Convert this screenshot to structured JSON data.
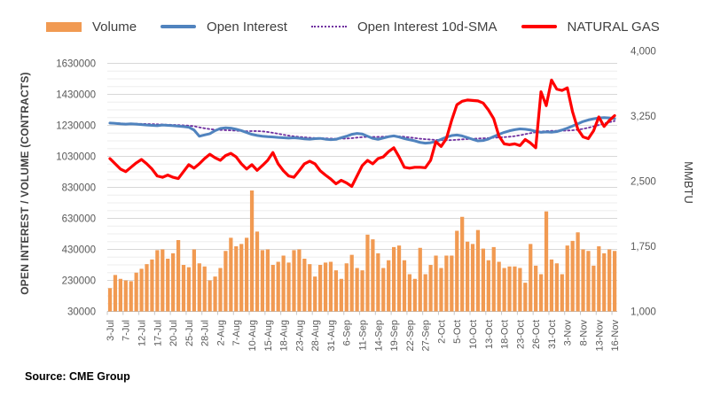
{
  "source_note": "Source: CME Group",
  "legend": {
    "items": [
      {
        "label": "Volume",
        "type": "bar",
        "color": "#F19A52"
      },
      {
        "label": "Open Interest",
        "type": "line",
        "color": "#5083BE"
      },
      {
        "label": "Open Interest 10d-SMA",
        "type": "dotted",
        "color": "#7030A0"
      },
      {
        "label": "NATURAL GAS",
        "type": "line",
        "color": "#FF0000"
      }
    ]
  },
  "chart_data": {
    "type": "bar",
    "subtype": "combo-bar-and-lines",
    "title": "",
    "grid": {
      "minor_step": 50000,
      "major_step": 200000,
      "vertical_gridlines": false
    },
    "left_axis": {
      "title": "OPEN INTEREST / VOLUME (CONTRACTS)",
      "min": 30000,
      "max": 1630000,
      "tick_step": 200000,
      "ticks": [
        1630000,
        1430000,
        1230000,
        1030000,
        830000,
        630000,
        430000,
        230000,
        30000
      ]
    },
    "right_axis": {
      "title": "MMBTU",
      "min": 1000,
      "max": 4000,
      "tick_step": 750,
      "ticks": [
        "4,000",
        "3,250",
        "2,500",
        "1,750",
        "1,000"
      ]
    },
    "x_axis": {
      "label_every_n": 3,
      "labels_shown": [
        "3-Jul",
        "7-Jul",
        "12-Jul",
        "17-Jul",
        "20-Jul",
        "25-Jul",
        "28-Jul",
        "2-Aug",
        "7-Aug",
        "10-Aug",
        "15-Aug",
        "18-Aug",
        "23-Aug",
        "28-Aug",
        "31-Aug",
        "6-Sep",
        "11-Sep",
        "14-Sep",
        "19-Sep",
        "22-Sep",
        "27-Sep",
        "2-Oct",
        "5-Oct",
        "10-Oct",
        "13-Oct",
        "18-Oct",
        "23-Oct",
        "26-Oct",
        "31-Oct",
        "3-Nov",
        "8-Nov",
        "13-Nov",
        "16-Nov"
      ]
    },
    "categories": [
      "3-Jul",
      "5-Jul",
      "6-Jul",
      "7-Jul",
      "10-Jul",
      "11-Jul",
      "12-Jul",
      "13-Jul",
      "14-Jul",
      "17-Jul",
      "18-Jul",
      "19-Jul",
      "20-Jul",
      "21-Jul",
      "24-Jul",
      "25-Jul",
      "26-Jul",
      "27-Jul",
      "28-Jul",
      "31-Jul",
      "1-Aug",
      "2-Aug",
      "3-Aug",
      "4-Aug",
      "7-Aug",
      "8-Aug",
      "9-Aug",
      "10-Aug",
      "11-Aug",
      "14-Aug",
      "15-Aug",
      "16-Aug",
      "17-Aug",
      "18-Aug",
      "21-Aug",
      "22-Aug",
      "23-Aug",
      "24-Aug",
      "25-Aug",
      "28-Aug",
      "29-Aug",
      "30-Aug",
      "31-Aug",
      "1-Sep",
      "5-Sep",
      "6-Sep",
      "7-Sep",
      "8-Sep",
      "11-Sep",
      "12-Sep",
      "13-Sep",
      "14-Sep",
      "15-Sep",
      "18-Sep",
      "19-Sep",
      "20-Sep",
      "21-Sep",
      "22-Sep",
      "25-Sep",
      "26-Sep",
      "27-Sep",
      "28-Sep",
      "29-Sep",
      "2-Oct",
      "3-Oct",
      "4-Oct",
      "5-Oct",
      "6-Oct",
      "9-Oct",
      "10-Oct",
      "11-Oct",
      "12-Oct",
      "13-Oct",
      "16-Oct",
      "17-Oct",
      "18-Oct",
      "19-Oct",
      "20-Oct",
      "23-Oct",
      "24-Oct",
      "25-Oct",
      "26-Oct",
      "27-Oct",
      "30-Oct",
      "31-Oct",
      "1-Nov",
      "2-Nov",
      "3-Nov",
      "6-Nov",
      "7-Nov",
      "8-Nov",
      "9-Nov",
      "10-Nov",
      "13-Nov",
      "14-Nov",
      "15-Nov",
      "16-Nov"
    ],
    "series": [
      {
        "name": "Volume",
        "type": "bar",
        "axis": "left",
        "color": "#F19A52",
        "values": [
          180000,
          265000,
          240000,
          230000,
          225000,
          280000,
          305000,
          335000,
          365000,
          425000,
          430000,
          370000,
          405000,
          490000,
          330000,
          315000,
          430000,
          340000,
          320000,
          230000,
          255000,
          310000,
          420000,
          505000,
          450000,
          465000,
          505000,
          810000,
          545000,
          425000,
          430000,
          330000,
          350000,
          390000,
          345000,
          425000,
          430000,
          370000,
          335000,
          255000,
          330000,
          345000,
          350000,
          295000,
          240000,
          340000,
          395000,
          310000,
          295000,
          525000,
          495000,
          405000,
          310000,
          360000,
          445000,
          455000,
          360000,
          270000,
          240000,
          440000,
          270000,
          330000,
          390000,
          310000,
          390000,
          390000,
          550000,
          640000,
          480000,
          465000,
          555000,
          435000,
          360000,
          445000,
          350000,
          310000,
          320000,
          320000,
          310000,
          215000,
          465000,
          325000,
          270000,
          675000,
          365000,
          340000,
          270000,
          455000,
          485000,
          540000,
          430000,
          420000,
          325000,
          450000,
          405000,
          430000,
          420000
        ]
      },
      {
        "name": "Open Interest",
        "type": "line",
        "axis": "left",
        "color": "#5083BE",
        "values": [
          1245000,
          1243000,
          1240000,
          1238000,
          1240000,
          1238000,
          1235000,
          1232000,
          1230000,
          1228000,
          1232000,
          1230000,
          1228000,
          1225000,
          1222000,
          1218000,
          1200000,
          1160000,
          1168000,
          1176000,
          1196000,
          1210000,
          1214000,
          1212000,
          1205000,
          1196000,
          1184000,
          1172000,
          1165000,
          1160000,
          1157000,
          1155000,
          1152000,
          1150000,
          1148000,
          1150000,
          1147000,
          1143000,
          1141000,
          1144000,
          1146000,
          1141000,
          1138000,
          1140000,
          1150000,
          1160000,
          1172000,
          1178000,
          1174000,
          1160000,
          1146000,
          1140000,
          1148000,
          1157000,
          1162000,
          1155000,
          1145000,
          1137000,
          1130000,
          1120000,
          1115000,
          1118000,
          1126000,
          1140000,
          1154000,
          1164000,
          1168000,
          1162000,
          1151000,
          1140000,
          1130000,
          1132000,
          1142000,
          1158000,
          1172000,
          1185000,
          1195000,
          1202000,
          1207000,
          1205000,
          1200000,
          1192000,
          1185000,
          1188000,
          1186000,
          1190000,
          1200000,
          1212000,
          1226000,
          1240000,
          1255000,
          1265000,
          1272000,
          1278000,
          1280000,
          1278000,
          1273000
        ]
      },
      {
        "name": "Open Interest 10d-SMA",
        "type": "line-dotted",
        "axis": "left",
        "color": "#7030A0",
        "derived_from": "Open Interest",
        "window": 10
      },
      {
        "name": "NATURAL GAS",
        "type": "line",
        "axis": "right",
        "color": "#FF0000",
        "values": [
          2760,
          2700,
          2640,
          2610,
          2660,
          2710,
          2750,
          2700,
          2640,
          2560,
          2545,
          2570,
          2545,
          2530,
          2610,
          2690,
          2650,
          2700,
          2760,
          2810,
          2770,
          2740,
          2795,
          2820,
          2780,
          2700,
          2640,
          2690,
          2625,
          2680,
          2740,
          2830,
          2700,
          2620,
          2560,
          2545,
          2620,
          2700,
          2730,
          2700,
          2620,
          2570,
          2525,
          2470,
          2510,
          2480,
          2440,
          2560,
          2680,
          2740,
          2700,
          2760,
          2780,
          2840,
          2885,
          2780,
          2660,
          2650,
          2660,
          2660,
          2655,
          2740,
          2955,
          2900,
          2990,
          3200,
          3380,
          3420,
          3435,
          3430,
          3425,
          3400,
          3320,
          3220,
          3020,
          2930,
          2920,
          2930,
          2910,
          2980,
          2940,
          2885,
          3530,
          3370,
          3665,
          3560,
          3545,
          3575,
          3300,
          3100,
          3010,
          2990,
          3080,
          3240,
          3130,
          3200,
          3255
        ]
      }
    ]
  }
}
